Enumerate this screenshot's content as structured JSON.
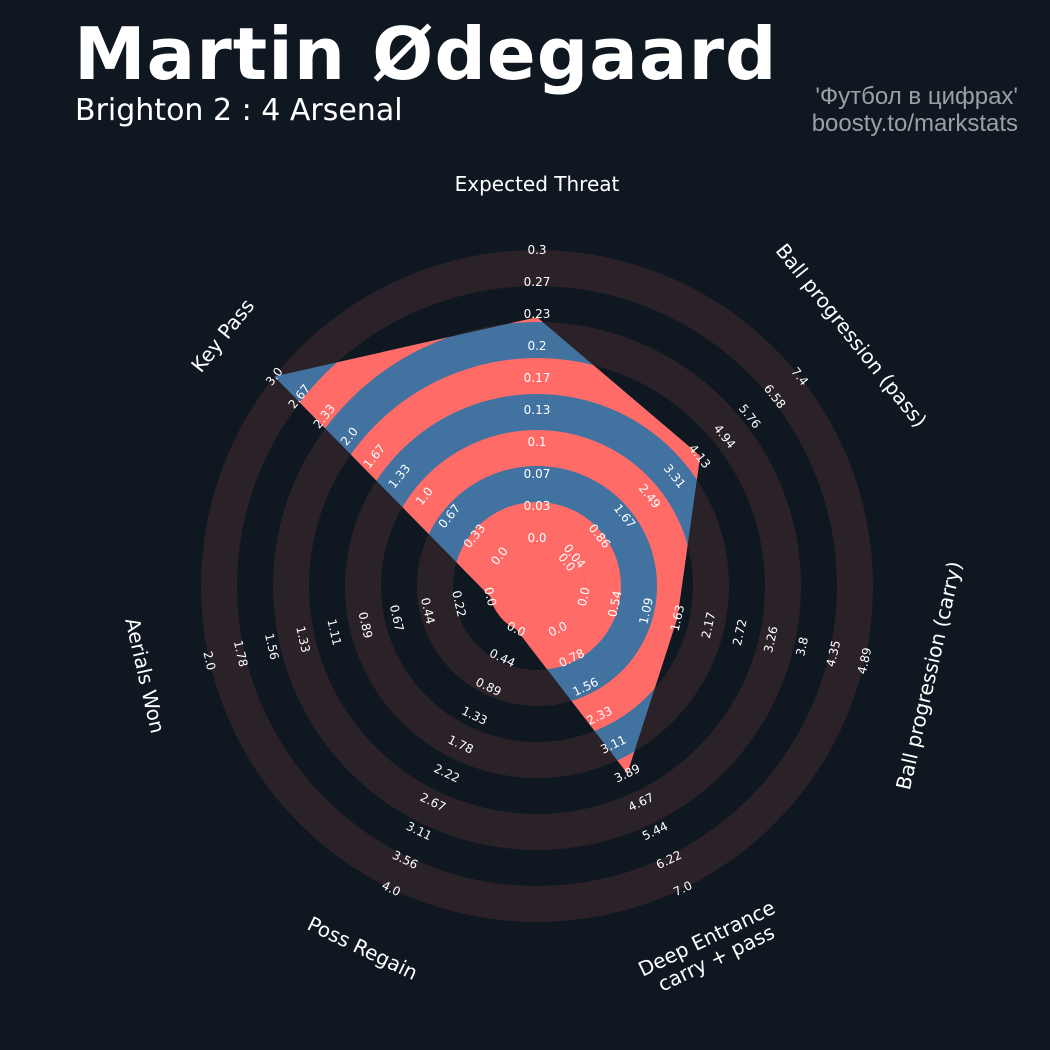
{
  "header": {
    "title": "Martin Ødegaard",
    "subtitle": "Brighton 2 : 4 Arsenal",
    "credit_line1": "'Футбол в цифрах'",
    "credit_line2": "boosty.to/markstats"
  },
  "colors": {
    "background": "#0f1820",
    "ring_band": "#2a2228",
    "data_blue": "#4272a0",
    "data_red": "#ff6b67",
    "label": "#ffffff",
    "credit": "#9aa0a6"
  },
  "chart_data": {
    "type": "radar",
    "parameters": [
      {
        "name": "Expected Threat",
        "ticks": [
          "0.0",
          "0.03",
          "0.07",
          "0.1",
          "0.13",
          "0.17",
          "0.2",
          "0.23",
          "0.27",
          "0.3"
        ],
        "min": 0,
        "max": 0.3,
        "value": 0.23
      },
      {
        "name": "Ball progression (pass)",
        "ticks": [
          "0.0",
          "0.04",
          "0.86",
          "1.67",
          "2.49",
          "3.31",
          "4.13",
          "4.94",
          "5.76",
          "6.58",
          "7.4"
        ],
        "min": 0,
        "max": 7.4,
        "value": 4.13
      },
      {
        "name": "Ball progression (carry)",
        "ticks": [
          "0.0",
          "0.54",
          "1.09",
          "1.63",
          "2.17",
          "2.72",
          "3.26",
          "3.8",
          "4.35",
          "4.89"
        ],
        "min": 0,
        "max": 4.89,
        "value": 1.63
      },
      {
        "name": "Deep Entrance\ncarry + pass",
        "ticks": [
          "0.0",
          "0.78",
          "1.56",
          "2.33",
          "3.11",
          "3.89",
          "4.67",
          "5.44",
          "6.22",
          "7.0"
        ],
        "min": 0,
        "max": 7.0,
        "value": 3.89
      },
      {
        "name": "Poss Regain",
        "ticks": [
          "0.0",
          "0.44",
          "0.89",
          "1.33",
          "1.78",
          "2.22",
          "2.67",
          "3.11",
          "3.56",
          "4.0"
        ],
        "min": 0,
        "max": 4.0,
        "value": 0.0
      },
      {
        "name": "Aerials Won",
        "ticks": [
          "0.0",
          "0.22",
          "0.44",
          "0.67",
          "0.89",
          "1.11",
          "1.33",
          "1.56",
          "1.78",
          "2.0"
        ],
        "min": 0,
        "max": 2.0,
        "value": 0.0
      },
      {
        "name": "Key Pass",
        "ticks": [
          "0.0",
          "0.33",
          "0.67",
          "1.0",
          "1.33",
          "1.67",
          "2.0",
          "2.33",
          "2.67",
          "3.0"
        ],
        "min": 0,
        "max": 3.0,
        "value": 3.0
      }
    ]
  }
}
